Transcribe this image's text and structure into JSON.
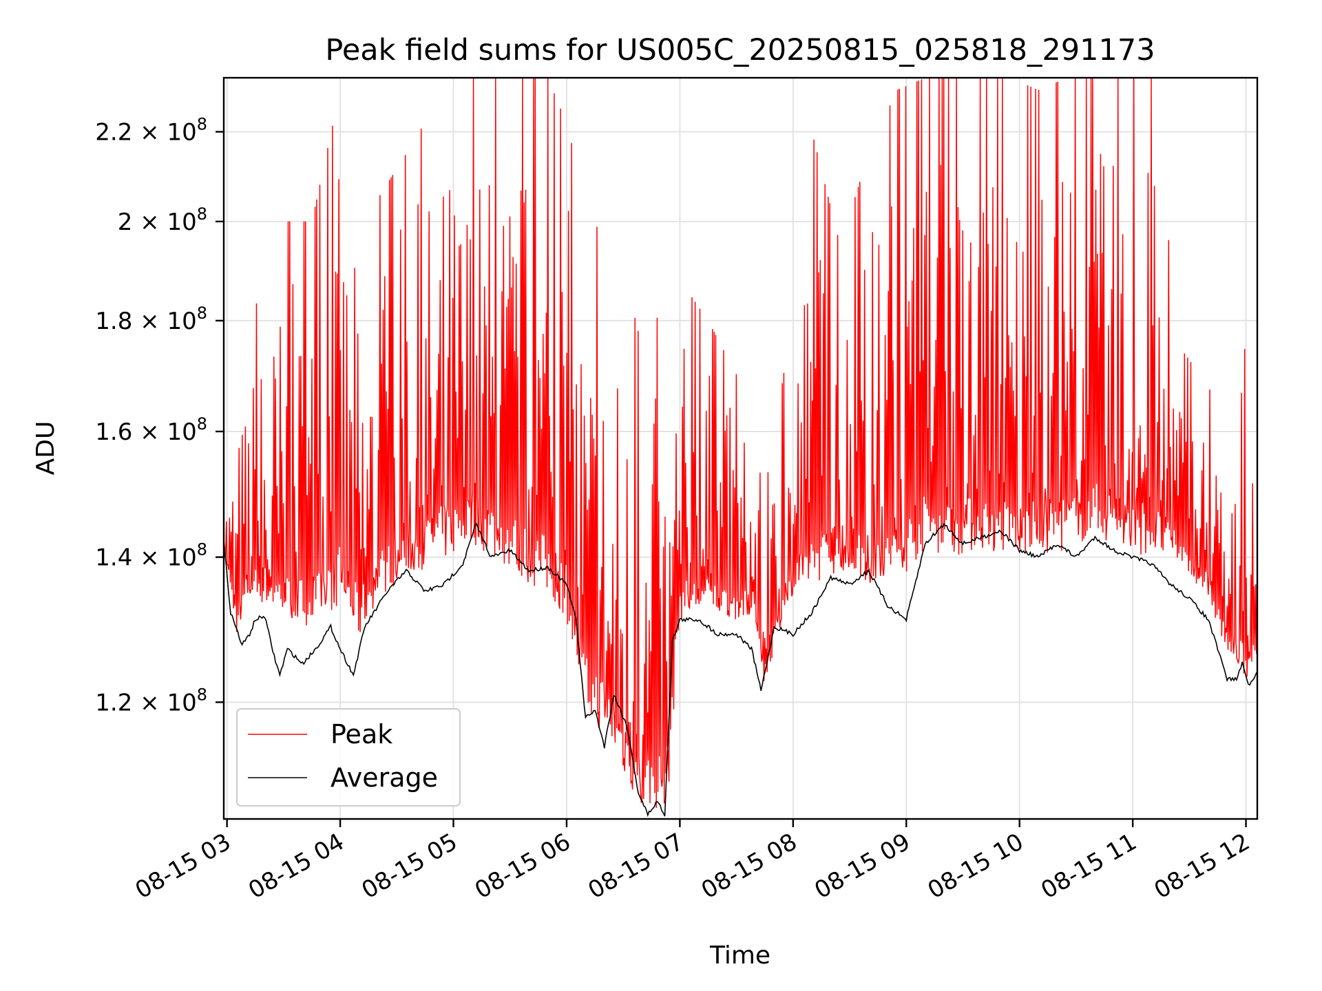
{
  "chart_data": {
    "type": "line",
    "title": "Peak field sums for US005C_20250815_025818_291173",
    "xlabel": "Time",
    "ylabel": "ADU",
    "x_axis": {
      "kind": "time",
      "range": [
        "2025-08-15T02:58:18",
        "2025-08-15T12:06:00"
      ],
      "ticks": [
        {
          "value": "2025-08-15T03:00",
          "label": "08-15 03"
        },
        {
          "value": "2025-08-15T04:00",
          "label": "08-15 04"
        },
        {
          "value": "2025-08-15T05:00",
          "label": "08-15 05"
        },
        {
          "value": "2025-08-15T06:00",
          "label": "08-15 06"
        },
        {
          "value": "2025-08-15T07:00",
          "label": "08-15 07"
        },
        {
          "value": "2025-08-15T08:00",
          "label": "08-15 08"
        },
        {
          "value": "2025-08-15T09:00",
          "label": "08-15 09"
        },
        {
          "value": "2025-08-15T10:00",
          "label": "08-15 10"
        },
        {
          "value": "2025-08-15T11:00",
          "label": "08-15 11"
        },
        {
          "value": "2025-08-15T12:00",
          "label": "08-15 12"
        }
      ]
    },
    "y_axis": {
      "scale": "log",
      "range": [
        106000000,
        233000000
      ],
      "ticks": [
        {
          "value": 120000000,
          "mantissa": "1.2",
          "exp": "8"
        },
        {
          "value": 140000000,
          "mantissa": "1.4",
          "exp": "8"
        },
        {
          "value": 160000000,
          "mantissa": "1.6",
          "exp": "8"
        },
        {
          "value": 180000000,
          "mantissa": "1.8",
          "exp": "8"
        },
        {
          "value": 200000000,
          "mantissa": "2",
          "exp": "8"
        },
        {
          "value": 220000000,
          "mantissa": "2.2",
          "exp": "8"
        }
      ],
      "times_sign": "×",
      "base": "10"
    },
    "grid": true,
    "legend": {
      "placement": "lower-left"
    },
    "series": [
      {
        "name": "Peak",
        "color": "#ff0000",
        "envelope": {
          "x": [
            "2025-08-15T02:58",
            "2025-08-15T03:05",
            "2025-08-15T03:12",
            "2025-08-15T03:20",
            "2025-08-15T03:30",
            "2025-08-15T03:45",
            "2025-08-15T04:00",
            "2025-08-15T04:10",
            "2025-08-15T04:20",
            "2025-08-15T04:35",
            "2025-08-15T04:50",
            "2025-08-15T05:00",
            "2025-08-15T05:10",
            "2025-08-15T05:20",
            "2025-08-15T05:35",
            "2025-08-15T05:50",
            "2025-08-15T06:00",
            "2025-08-15T06:10",
            "2025-08-15T06:20",
            "2025-08-15T06:30",
            "2025-08-15T06:40",
            "2025-08-15T06:50",
            "2025-08-15T06:53",
            "2025-08-15T07:00",
            "2025-08-15T07:15",
            "2025-08-15T07:30",
            "2025-08-15T07:40",
            "2025-08-15T07:45",
            "2025-08-15T07:55",
            "2025-08-15T08:10",
            "2025-08-15T08:25",
            "2025-08-15T08:40",
            "2025-08-15T08:55",
            "2025-08-15T09:10",
            "2025-08-15T09:25",
            "2025-08-15T09:40",
            "2025-08-15T09:55",
            "2025-08-15T10:10",
            "2025-08-15T10:25",
            "2025-08-15T10:40",
            "2025-08-15T10:55",
            "2025-08-15T11:10",
            "2025-08-15T11:25",
            "2025-08-15T11:40",
            "2025-08-15T11:50",
            "2025-08-15T11:55",
            "2025-08-15T12:00",
            "2025-08-15T12:06"
          ],
          "low": [
            142000000,
            129000000,
            134000000,
            133000000,
            131000000,
            130000000,
            133000000,
            128000000,
            134000000,
            137000000,
            139000000,
            140000000,
            142000000,
            140000000,
            137000000,
            134000000,
            131000000,
            118000000,
            116000000,
            111000000,
            107000000,
            107000000,
            106000000,
            131000000,
            132000000,
            131000000,
            131000000,
            122000000,
            132000000,
            136000000,
            138000000,
            136000000,
            136000000,
            141000000,
            140000000,
            141000000,
            140000000,
            140000000,
            141000000,
            143000000,
            141000000,
            140000000,
            139000000,
            134000000,
            126000000,
            125000000,
            123000000,
            126000000
          ],
          "high": [
            150000000,
            167000000,
            178000000,
            190000000,
            200000000,
            200000000,
            230000000,
            200000000,
            205000000,
            215000000,
            226000000,
            233000000,
            233000000,
            233000000,
            233000000,
            233000000,
            222000000,
            205000000,
            195000000,
            190000000,
            175000000,
            182000000,
            190000000,
            188000000,
            180000000,
            170000000,
            168000000,
            150000000,
            170000000,
            220000000,
            195000000,
            215000000,
            230000000,
            233000000,
            233000000,
            233000000,
            233000000,
            230000000,
            233000000,
            233000000,
            233000000,
            233000000,
            175000000,
            168000000,
            160000000,
            155000000,
            178000000,
            135000000
          ]
        }
      },
      {
        "name": "Average",
        "color": "#000000",
        "x": [
          "2025-08-15T02:58",
          "2025-08-15T03:02",
          "2025-08-15T03:08",
          "2025-08-15T03:12",
          "2025-08-15T03:15",
          "2025-08-15T03:20",
          "2025-08-15T03:25",
          "2025-08-15T03:28",
          "2025-08-15T03:32",
          "2025-08-15T03:40",
          "2025-08-15T03:47",
          "2025-08-15T03:55",
          "2025-08-15T04:00",
          "2025-08-15T04:07",
          "2025-08-15T04:13",
          "2025-08-15T04:25",
          "2025-08-15T04:35",
          "2025-08-15T04:45",
          "2025-08-15T04:55",
          "2025-08-15T05:05",
          "2025-08-15T05:12",
          "2025-08-15T05:20",
          "2025-08-15T05:30",
          "2025-08-15T05:40",
          "2025-08-15T05:50",
          "2025-08-15T06:00",
          "2025-08-15T06:05",
          "2025-08-15T06:10",
          "2025-08-15T06:15",
          "2025-08-15T06:20",
          "2025-08-15T06:25",
          "2025-08-15T06:32",
          "2025-08-15T06:38",
          "2025-08-15T06:43",
          "2025-08-15T06:48",
          "2025-08-15T06:52",
          "2025-08-15T06:56",
          "2025-08-15T07:00",
          "2025-08-15T07:10",
          "2025-08-15T07:20",
          "2025-08-15T07:30",
          "2025-08-15T07:38",
          "2025-08-15T07:43",
          "2025-08-15T07:50",
          "2025-08-15T08:00",
          "2025-08-15T08:10",
          "2025-08-15T08:20",
          "2025-08-15T08:30",
          "2025-08-15T08:40",
          "2025-08-15T08:50",
          "2025-08-15T09:00",
          "2025-08-15T09:10",
          "2025-08-15T09:20",
          "2025-08-15T09:30",
          "2025-08-15T09:40",
          "2025-08-15T09:50",
          "2025-08-15T10:00",
          "2025-08-15T10:10",
          "2025-08-15T10:20",
          "2025-08-15T10:30",
          "2025-08-15T10:40",
          "2025-08-15T10:50",
          "2025-08-15T11:00",
          "2025-08-15T11:10",
          "2025-08-15T11:20",
          "2025-08-15T11:30",
          "2025-08-15T11:40",
          "2025-08-15T11:45",
          "2025-08-15T11:50",
          "2025-08-15T11:55",
          "2025-08-15T11:58",
          "2025-08-15T12:02",
          "2025-08-15T12:06"
        ],
        "values": [
          143000000,
          132000000,
          127500000,
          129000000,
          131000000,
          131500000,
          126000000,
          123500000,
          127000000,
          125000000,
          127000000,
          130000000,
          127000000,
          123500000,
          130000000,
          135000000,
          138000000,
          135000000,
          136000000,
          139000000,
          145000000,
          140000000,
          141000000,
          138000000,
          138500000,
          136000000,
          131000000,
          118000000,
          119000000,
          114500000,
          121000000,
          117000000,
          109000000,
          106500000,
          108000000,
          106500000,
          128000000,
          131000000,
          131000000,
          129000000,
          129000000,
          127000000,
          121500000,
          130000000,
          129000000,
          132000000,
          137000000,
          136000000,
          138000000,
          133000000,
          131000000,
          142000000,
          145000000,
          142000000,
          143000000,
          144000000,
          141000000,
          140000000,
          142000000,
          140000000,
          143000000,
          141000000,
          140000000,
          139000000,
          136000000,
          134000000,
          131000000,
          127000000,
          123000000,
          123000000,
          125000000,
          122000000,
          124000000
        ]
      }
    ]
  }
}
